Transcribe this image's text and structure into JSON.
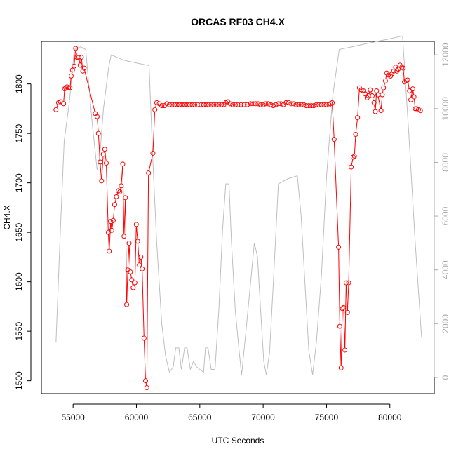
{
  "chart_data": {
    "type": "line",
    "title": "ORCAS RF03 CH4.X",
    "xlabel": "UTC Seconds",
    "ylabel": "CH4.X",
    "xlim": [
      52500,
      83500
    ],
    "ylim": [
      1487,
      1843
    ],
    "y2lim": [
      -600,
      12500
    ],
    "x_ticks": [
      55000,
      60000,
      65000,
      70000,
      75000,
      80000
    ],
    "y_ticks": [
      1500,
      1550,
      1600,
      1650,
      1700,
      1750,
      1800
    ],
    "y2_ticks": [
      0,
      2000,
      4000,
      6000,
      8000,
      10000,
      12000
    ],
    "colors": {
      "series": "#ff0000",
      "secondary": "#bebebe",
      "axis2": "#aaaaaa"
    },
    "series": [
      {
        "axis": "left",
        "style": "points-and-lines",
        "points": [
          [
            53650,
            1774
          ],
          [
            53850,
            1781
          ],
          [
            54000,
            1782
          ],
          [
            54250,
            1780
          ],
          [
            54330,
            1795
          ],
          [
            54420,
            1796
          ],
          [
            54520,
            1797
          ],
          [
            54640,
            1796
          ],
          [
            54760,
            1796
          ],
          [
            54850,
            1808
          ],
          [
            54950,
            1814
          ],
          [
            55080,
            1818
          ],
          [
            55200,
            1836
          ],
          [
            55320,
            1827
          ],
          [
            55450,
            1827
          ],
          [
            55560,
            1819
          ],
          [
            55650,
            1827
          ],
          [
            55770,
            1813
          ],
          [
            55870,
            1816
          ],
          [
            56750,
            1770
          ],
          [
            56900,
            1767
          ],
          [
            57000,
            1750
          ],
          [
            57130,
            1721
          ],
          [
            57250,
            1702
          ],
          [
            57380,
            1729
          ],
          [
            57500,
            1734
          ],
          [
            57620,
            1720
          ],
          [
            57780,
            1650
          ],
          [
            57850,
            1631
          ],
          [
            57970,
            1661
          ],
          [
            58050,
            1652
          ],
          [
            58170,
            1662
          ],
          [
            58280,
            1678
          ],
          [
            58420,
            1686
          ],
          [
            58570,
            1692
          ],
          [
            58690,
            1691
          ],
          [
            58800,
            1697
          ],
          [
            58920,
            1719
          ],
          [
            59020,
            1646
          ],
          [
            59130,
            1685
          ],
          [
            59230,
            1577
          ],
          [
            59320,
            1612
          ],
          [
            59420,
            1639
          ],
          [
            59520,
            1610
          ],
          [
            59630,
            1602
          ],
          [
            59740,
            1594
          ],
          [
            59880,
            1599
          ],
          [
            59990,
            1658
          ],
          [
            60100,
            1641
          ],
          [
            60230,
            1617
          ],
          [
            60350,
            1625
          ],
          [
            60450,
            1613
          ],
          [
            60600,
            1543
          ],
          [
            60720,
            1500
          ],
          [
            60820,
            1493
          ],
          [
            60950,
            1710
          ],
          [
            61300,
            1730
          ],
          [
            61450,
            1774
          ],
          [
            61600,
            1781
          ],
          [
            61800,
            1780
          ],
          [
            62000,
            1778
          ],
          [
            62200,
            1778
          ],
          [
            62400,
            1780
          ],
          [
            62600,
            1779
          ],
          [
            62800,
            1779
          ],
          [
            63000,
            1779
          ],
          [
            63200,
            1779
          ],
          [
            63400,
            1779
          ],
          [
            63600,
            1779
          ],
          [
            63800,
            1779
          ],
          [
            64000,
            1779
          ],
          [
            64200,
            1779
          ],
          [
            64400,
            1779
          ],
          [
            64600,
            1779
          ],
          [
            64800,
            1779
          ],
          [
            65100,
            1779
          ],
          [
            65300,
            1779
          ],
          [
            65500,
            1779
          ],
          [
            65700,
            1779
          ],
          [
            65900,
            1779
          ],
          [
            66100,
            1779
          ],
          [
            66300,
            1779
          ],
          [
            66500,
            1779
          ],
          [
            66700,
            1779
          ],
          [
            66900,
            1779
          ],
          [
            67050,
            1781
          ],
          [
            67200,
            1782
          ],
          [
            67400,
            1780
          ],
          [
            67600,
            1779
          ],
          [
            67800,
            1779
          ],
          [
            68000,
            1779
          ],
          [
            68250,
            1779
          ],
          [
            68500,
            1779
          ],
          [
            68750,
            1779
          ],
          [
            69000,
            1780
          ],
          [
            69200,
            1780
          ],
          [
            69400,
            1780
          ],
          [
            69600,
            1780
          ],
          [
            69800,
            1779
          ],
          [
            70000,
            1779
          ],
          [
            70200,
            1780
          ],
          [
            70400,
            1780
          ],
          [
            70600,
            1779
          ],
          [
            70800,
            1778
          ],
          [
            71000,
            1779
          ],
          [
            71200,
            1780
          ],
          [
            71400,
            1780
          ],
          [
            71600,
            1779
          ],
          [
            71800,
            1781
          ],
          [
            72000,
            1781
          ],
          [
            72200,
            1780
          ],
          [
            72400,
            1780
          ],
          [
            72600,
            1779
          ],
          [
            72800,
            1779
          ],
          [
            73000,
            1779
          ],
          [
            73200,
            1779
          ],
          [
            73400,
            1778
          ],
          [
            73600,
            1778
          ],
          [
            73800,
            1778
          ],
          [
            74000,
            1778
          ],
          [
            74200,
            1779
          ],
          [
            74400,
            1779
          ],
          [
            74600,
            1779
          ],
          [
            74800,
            1779
          ],
          [
            75000,
            1779
          ],
          [
            75200,
            1779
          ],
          [
            75300,
            1780
          ],
          [
            75450,
            1781
          ],
          [
            75600,
            1744
          ],
          [
            75950,
            1635
          ],
          [
            76050,
            1555
          ],
          [
            76150,
            1513
          ],
          [
            76250,
            1573
          ],
          [
            76350,
            1574
          ],
          [
            76450,
            1531
          ],
          [
            76550,
            1599
          ],
          [
            76650,
            1569
          ],
          [
            76750,
            1599
          ],
          [
            76950,
            1716
          ],
          [
            77100,
            1726
          ],
          [
            77200,
            1727
          ],
          [
            77300,
            1749
          ],
          [
            77450,
            1766
          ],
          [
            77600,
            1796
          ],
          [
            77750,
            1794
          ],
          [
            77900,
            1793
          ],
          [
            78050,
            1790
          ],
          [
            78200,
            1786
          ],
          [
            78300,
            1788
          ],
          [
            78450,
            1794
          ],
          [
            78600,
            1788
          ],
          [
            78750,
            1781
          ],
          [
            78850,
            1772
          ],
          [
            78950,
            1793
          ],
          [
            79050,
            1789
          ],
          [
            79300,
            1773
          ],
          [
            79400,
            1789
          ],
          [
            79500,
            1796
          ],
          [
            79650,
            1803
          ],
          [
            79750,
            1811
          ],
          [
            79900,
            1809
          ],
          [
            80050,
            1808
          ],
          [
            80150,
            1810
          ],
          [
            80300,
            1813
          ],
          [
            80450,
            1817
          ],
          [
            80550,
            1813
          ],
          [
            80650,
            1815
          ],
          [
            80800,
            1819
          ],
          [
            80950,
            1817
          ],
          [
            81050,
            1816
          ],
          [
            81150,
            1802
          ],
          [
            81300,
            1803
          ],
          [
            81400,
            1804
          ],
          [
            81550,
            1793
          ],
          [
            81650,
            1784
          ],
          [
            81800,
            1795
          ],
          [
            81900,
            1787
          ],
          [
            82000,
            1775
          ],
          [
            82100,
            1775
          ],
          [
            82250,
            1774
          ],
          [
            82400,
            1773
          ]
        ]
      },
      {
        "axis": "right",
        "style": "line",
        "points": [
          [
            53650,
            1300
          ],
          [
            54000,
            5500
          ],
          [
            54300,
            8800
          ],
          [
            54700,
            10200
          ],
          [
            55100,
            12200
          ],
          [
            55600,
            12300
          ],
          [
            56000,
            12200
          ],
          [
            56500,
            9500
          ],
          [
            56900,
            7700
          ],
          [
            57100,
            8200
          ],
          [
            57400,
            10000
          ],
          [
            57800,
            11500
          ],
          [
            58000,
            12000
          ],
          [
            59000,
            11800
          ],
          [
            60000,
            11700
          ],
          [
            61000,
            11600
          ],
          [
            61300,
            8000
          ],
          [
            61600,
            5000
          ],
          [
            62000,
            2000
          ],
          [
            62300,
            800
          ],
          [
            62600,
            200
          ],
          [
            62900,
            400
          ],
          [
            63100,
            1100
          ],
          [
            63350,
            1100
          ],
          [
            63550,
            300
          ],
          [
            63800,
            1100
          ],
          [
            64000,
            1100
          ],
          [
            64250,
            300
          ],
          [
            64500,
            600
          ],
          [
            64750,
            400
          ],
          [
            65000,
            300
          ],
          [
            65300,
            200
          ],
          [
            65450,
            1100
          ],
          [
            65650,
            1100
          ],
          [
            65900,
            300
          ],
          [
            66200,
            300
          ],
          [
            66500,
            2500
          ],
          [
            66800,
            5500
          ],
          [
            67050,
            7200
          ],
          [
            67300,
            7200
          ],
          [
            67500,
            5000
          ],
          [
            67800,
            2500
          ],
          [
            68100,
            1000
          ],
          [
            68300,
            100
          ],
          [
            68600,
            1500
          ],
          [
            69000,
            3500
          ],
          [
            69300,
            5000
          ],
          [
            69550,
            4500
          ],
          [
            69800,
            2500
          ],
          [
            70050,
            600
          ],
          [
            70250,
            100
          ],
          [
            70500,
            900
          ],
          [
            70800,
            3500
          ],
          [
            71200,
            7200
          ],
          [
            71600,
            7300
          ],
          [
            72000,
            7400
          ],
          [
            72700,
            7500
          ],
          [
            73000,
            6000
          ],
          [
            73300,
            3500
          ],
          [
            73600,
            1000
          ],
          [
            73900,
            100
          ],
          [
            74200,
            1300
          ],
          [
            74600,
            3800
          ],
          [
            75000,
            7500
          ],
          [
            75500,
            10500
          ],
          [
            76000,
            12200
          ],
          [
            77000,
            12300
          ],
          [
            78000,
            12400
          ],
          [
            79000,
            12500
          ],
          [
            80000,
            12600
          ],
          [
            81000,
            12700
          ],
          [
            81500,
            9000
          ],
          [
            82000,
            5000
          ],
          [
            82500,
            1500
          ]
        ]
      }
    ]
  }
}
